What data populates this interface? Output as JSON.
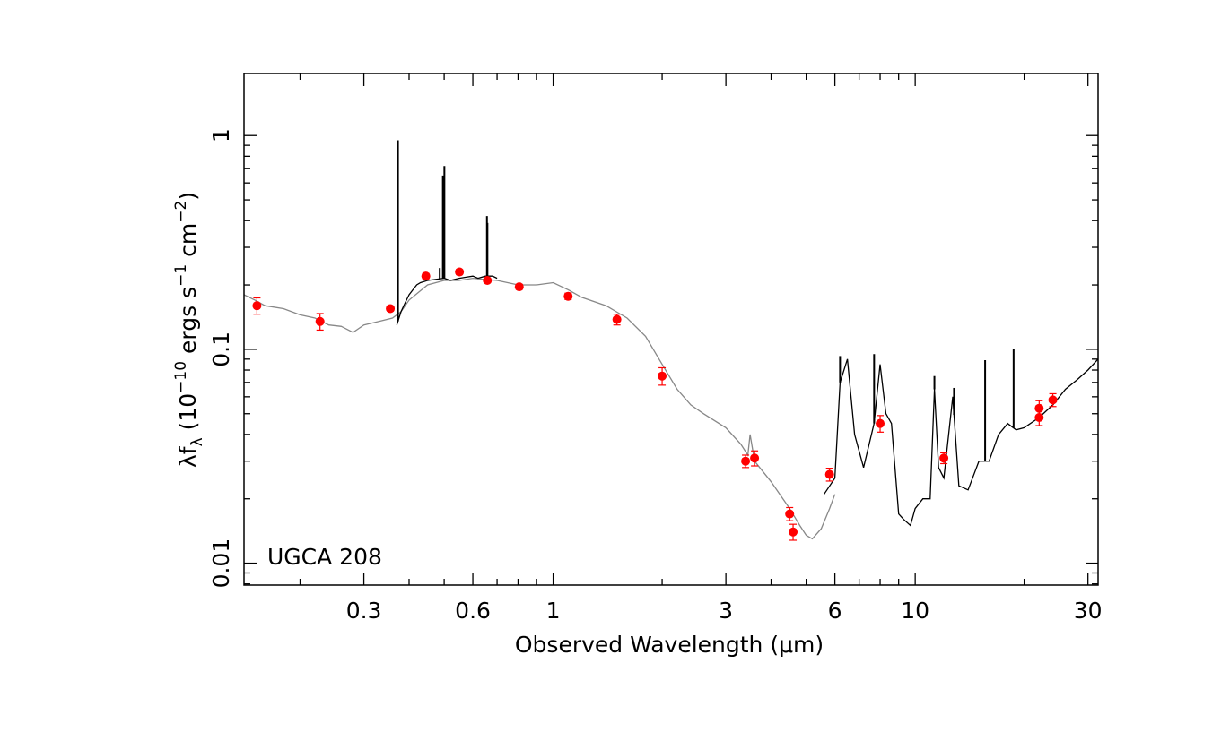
{
  "chart_data": {
    "type": "scatter",
    "title": "",
    "annotation": "UGCA 208",
    "xlabel": "Observed Wavelength (μm)",
    "ylabel_parts": [
      "λf",
      "λ",
      " (10",
      "−10",
      " ergs s",
      "−1",
      " cm",
      "−2",
      ")"
    ],
    "x_scale": "log",
    "y_scale": "log",
    "xlim": [
      0.14,
      32
    ],
    "ylim": [
      0.0079,
      1.95
    ],
    "x_ticks": [
      {
        "value": 0.3,
        "label": "0.3"
      },
      {
        "value": 0.6,
        "label": "0.6"
      },
      {
        "value": 1,
        "label": "1"
      },
      {
        "value": 3,
        "label": "3"
      },
      {
        "value": 6,
        "label": "6"
      },
      {
        "value": 10,
        "label": "10"
      },
      {
        "value": 30,
        "label": "30"
      }
    ],
    "y_ticks": [
      {
        "value": 0.01,
        "label": "0.01"
      },
      {
        "value": 0.1,
        "label": "0.1"
      },
      {
        "value": 1,
        "label": "1"
      }
    ],
    "colors": {
      "model": "#888888",
      "spectrum": "#000000",
      "points": "#ff0000"
    },
    "series": [
      {
        "style": "model-line",
        "x": [
          0.14,
          0.15,
          0.16,
          0.18,
          0.2,
          0.22,
          0.24,
          0.26,
          0.28,
          0.3,
          0.33,
          0.36,
          0.38,
          0.4,
          0.45,
          0.5,
          0.55,
          0.6,
          0.7,
          0.8,
          0.9,
          1.0,
          1.1,
          1.2,
          1.4,
          1.6,
          1.8,
          2.0,
          2.2,
          2.4,
          2.6,
          3.0,
          3.3,
          3.45,
          3.5,
          3.6,
          4.0,
          4.5,
          4.8,
          5.0,
          5.2,
          5.5,
          5.8,
          6.0
        ],
        "y": [
          0.18,
          0.17,
          0.16,
          0.155,
          0.145,
          0.14,
          0.13,
          0.128,
          0.12,
          0.13,
          0.135,
          0.14,
          0.15,
          0.17,
          0.2,
          0.21,
          0.21,
          0.215,
          0.21,
          0.2,
          0.2,
          0.205,
          0.19,
          0.175,
          0.16,
          0.14,
          0.115,
          0.085,
          0.065,
          0.055,
          0.05,
          0.043,
          0.036,
          0.032,
          0.04,
          0.03,
          0.024,
          0.018,
          0.015,
          0.0135,
          0.013,
          0.0145,
          0.018,
          0.021
        ]
      },
      {
        "style": "optical-spectrum",
        "x": [
          0.37,
          0.38,
          0.39,
          0.4,
          0.41,
          0.42,
          0.43,
          0.45,
          0.47,
          0.5,
          0.52,
          0.55,
          0.58,
          0.6,
          0.62,
          0.65,
          0.68,
          0.7
        ],
        "y": [
          0.13,
          0.15,
          0.165,
          0.18,
          0.19,
          0.2,
          0.205,
          0.21,
          0.212,
          0.215,
          0.21,
          0.215,
          0.218,
          0.22,
          0.215,
          0.22,
          0.22,
          0.215
        ],
        "emission_lines": [
          {
            "x": 0.3727,
            "peak": 0.95
          },
          {
            "x": 0.4861,
            "peak": 0.24
          },
          {
            "x": 0.4959,
            "peak": 0.65
          },
          {
            "x": 0.5007,
            "peak": 0.72
          },
          {
            "x": 0.6563,
            "peak": 0.42
          },
          {
            "x": 0.6584,
            "peak": 0.39
          }
        ]
      },
      {
        "style": "ir-spectrum",
        "x": [
          5.6,
          6.0,
          6.2,
          6.5,
          6.8,
          7.2,
          7.7,
          8.0,
          8.3,
          8.6,
          9.0,
          9.3,
          9.7,
          10.0,
          10.5,
          11.0,
          11.3,
          11.6,
          12.0,
          12.7,
          13.2,
          14.0,
          15.0,
          16.0,
          17.0,
          18.0,
          19.0,
          20.0,
          22.0,
          24.0,
          26.0,
          28.0,
          30.0,
          32.0
        ],
        "y": [
          0.021,
          0.025,
          0.07,
          0.09,
          0.04,
          0.028,
          0.045,
          0.085,
          0.05,
          0.045,
          0.017,
          0.016,
          0.015,
          0.018,
          0.02,
          0.02,
          0.065,
          0.028,
          0.025,
          0.06,
          0.023,
          0.022,
          0.03,
          0.03,
          0.04,
          0.045,
          0.042,
          0.043,
          0.048,
          0.055,
          0.065,
          0.072,
          0.08,
          0.09
        ],
        "emission_lines": [
          {
            "x": 6.2,
            "peak": 0.093
          },
          {
            "x": 7.7,
            "peak": 0.095
          },
          {
            "x": 11.3,
            "peak": 0.075
          },
          {
            "x": 12.8,
            "peak": 0.066
          },
          {
            "x": 15.6,
            "peak": 0.089
          },
          {
            "x": 18.7,
            "peak": 0.1
          }
        ]
      },
      {
        "style": "photometry",
        "points": [
          {
            "x": 0.152,
            "y": 0.16,
            "err": 0.014
          },
          {
            "x": 0.227,
            "y": 0.135,
            "err": 0.012
          },
          {
            "x": 0.355,
            "y": 0.155,
            "err": 0.004
          },
          {
            "x": 0.445,
            "y": 0.22,
            "err": 0.006
          },
          {
            "x": 0.551,
            "y": 0.23,
            "err": 0.006
          },
          {
            "x": 0.658,
            "y": 0.21,
            "err": 0.005
          },
          {
            "x": 0.806,
            "y": 0.196,
            "err": 0.005
          },
          {
            "x": 1.1,
            "y": 0.177,
            "err": 0.006
          },
          {
            "x": 1.5,
            "y": 0.138,
            "err": 0.008
          },
          {
            "x": 2.0,
            "y": 0.075,
            "err": 0.007
          },
          {
            "x": 3.4,
            "y": 0.03,
            "err": 0.002
          },
          {
            "x": 3.6,
            "y": 0.031,
            "err": 0.0025
          },
          {
            "x": 4.5,
            "y": 0.017,
            "err": 0.0012
          },
          {
            "x": 4.6,
            "y": 0.014,
            "err": 0.0012
          },
          {
            "x": 5.8,
            "y": 0.026,
            "err": 0.0018
          },
          {
            "x": 8.0,
            "y": 0.045,
            "err": 0.004
          },
          {
            "x": 12.0,
            "y": 0.031,
            "err": 0.0018
          },
          {
            "x": 22.0,
            "y": 0.053,
            "err": 0.0045
          },
          {
            "x": 22.0,
            "y": 0.048,
            "err": 0.004
          },
          {
            "x": 24.0,
            "y": 0.058,
            "err": 0.004
          }
        ]
      }
    ]
  }
}
